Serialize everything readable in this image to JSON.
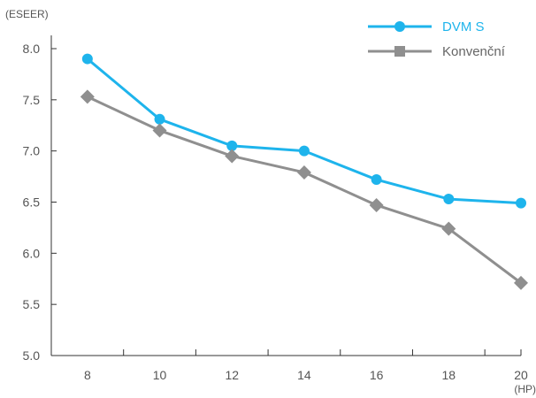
{
  "chart_data": {
    "type": "line",
    "y_unit": "(ESEER)",
    "x_unit": "(HP)",
    "x": [
      8,
      10,
      12,
      14,
      16,
      18,
      20
    ],
    "x_tick_labels": [
      "8",
      "10",
      "12",
      "14",
      "16",
      "18",
      "20"
    ],
    "y_tick_labels": [
      "5.0",
      "5.5",
      "6.0",
      "6.5",
      "7.0",
      "7.5",
      "8.0"
    ],
    "xlim": [
      7,
      20
    ],
    "ylim": [
      5.0,
      8.0
    ],
    "y_ticks": [
      5.0,
      5.5,
      6.0,
      6.5,
      7.0,
      7.5,
      8.0
    ],
    "grid": false,
    "legend_position": "top-right",
    "series": [
      {
        "name": "DVM S",
        "marker": "circle",
        "color": "#1eb4ec",
        "values": [
          7.9,
          7.31,
          7.05,
          7.0,
          6.72,
          6.53,
          6.49
        ]
      },
      {
        "name": "Konvenční",
        "marker": "diamond",
        "legend_marker": "square",
        "color": "#8f8f8f",
        "values": [
          7.53,
          7.2,
          6.95,
          6.79,
          6.47,
          6.24,
          5.71
        ]
      }
    ]
  }
}
